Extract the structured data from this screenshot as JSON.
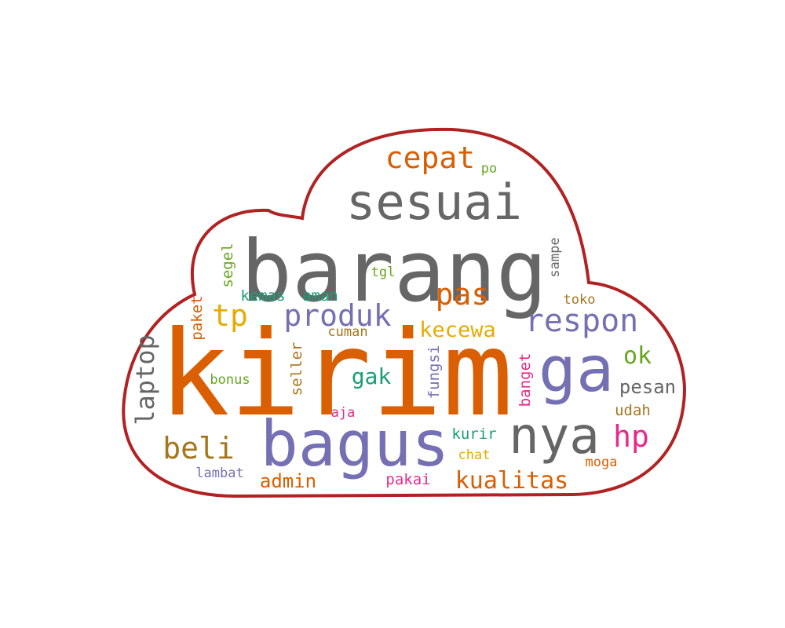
{
  "wordcloud": {
    "outline_color": "#b22222",
    "background": "#ffffff",
    "words": [
      {
        "id": "kirim",
        "text": "kirim",
        "color": "#d95f02"
      },
      {
        "id": "barang",
        "text": "barang",
        "color": "#666666"
      },
      {
        "id": "bagus",
        "text": "bagus",
        "color": "#7570b3"
      },
      {
        "id": "sesuai",
        "text": "sesuai",
        "color": "#666666"
      },
      {
        "id": "ga",
        "text": "ga",
        "color": "#7570b3"
      },
      {
        "id": "nya",
        "text": "nya",
        "color": "#666666"
      },
      {
        "id": "cepat",
        "text": "cepat",
        "color": "#d95f02"
      },
      {
        "id": "respon",
        "text": "respon",
        "color": "#7570b3"
      },
      {
        "id": "produk",
        "text": "produk",
        "color": "#7570b3"
      },
      {
        "id": "pas",
        "text": "pas",
        "color": "#d95f02"
      },
      {
        "id": "tp",
        "text": "tp",
        "color": "#e6ab02"
      },
      {
        "id": "hp",
        "text": "hp",
        "color": "#e7298a"
      },
      {
        "id": "beli",
        "text": "beli",
        "color": "#a6761d"
      },
      {
        "id": "kualitas",
        "text": "kualitas",
        "color": "#d95f02"
      },
      {
        "id": "laptop",
        "text": "laptop",
        "color": "#666666"
      },
      {
        "id": "kecewa",
        "text": "kecewa",
        "color": "#e6ab02"
      },
      {
        "id": "ok",
        "text": "ok",
        "color": "#66a61e"
      },
      {
        "id": "gak",
        "text": "gak",
        "color": "#1b9e77"
      },
      {
        "id": "pesan",
        "text": "pesan",
        "color": "#666666"
      },
      {
        "id": "admin",
        "text": "admin",
        "color": "#d95f02"
      },
      {
        "id": "banget",
        "text": "banget",
        "color": "#e7298a"
      },
      {
        "id": "fungsi",
        "text": "fungsi",
        "color": "#7570b3"
      },
      {
        "id": "seller",
        "text": "seller",
        "color": "#a6761d"
      },
      {
        "id": "paket",
        "text": "paket",
        "color": "#d95f02"
      },
      {
        "id": "segel",
        "text": "segel",
        "color": "#66a61e"
      },
      {
        "id": "kemas",
        "text": "kemas",
        "color": "#1b9e77"
      },
      {
        "id": "aman",
        "text": "aman",
        "color": "#1b9e77"
      },
      {
        "id": "kurir",
        "text": "kurir",
        "color": "#1b9e77"
      },
      {
        "id": "udah",
        "text": "udah",
        "color": "#a6761d"
      },
      {
        "id": "pakai",
        "text": "pakai",
        "color": "#e7298a"
      },
      {
        "id": "lambat",
        "text": "lambat",
        "color": "#7570b3"
      },
      {
        "id": "cuman",
        "text": "cuman",
        "color": "#a6761d"
      },
      {
        "id": "bonus",
        "text": "bonus",
        "color": "#66a61e"
      },
      {
        "id": "chat",
        "text": "chat",
        "color": "#e6ab02"
      },
      {
        "id": "moga",
        "text": "moga",
        "color": "#d95f02"
      },
      {
        "id": "toko",
        "text": "toko",
        "color": "#a6761d"
      },
      {
        "id": "aja",
        "text": "aja",
        "color": "#e7298a"
      },
      {
        "id": "sampe",
        "text": "sampe",
        "color": "#666666"
      },
      {
        "id": "tgl",
        "text": "tgl",
        "color": "#66a61e"
      },
      {
        "id": "po",
        "text": "po",
        "color": "#66a61e"
      }
    ]
  }
}
